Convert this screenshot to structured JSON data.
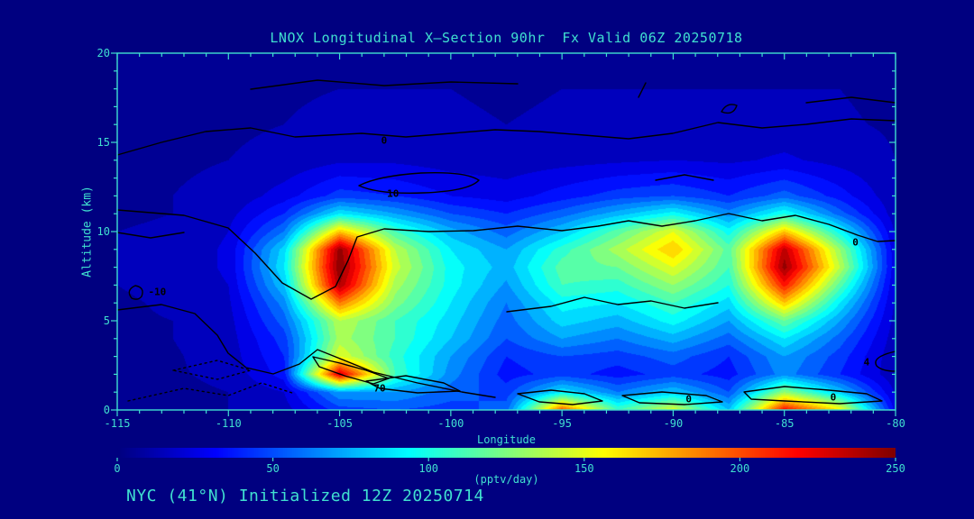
{
  "title": "LNOX Longitudinal X—Section 90hr  Fx Valid 06Z 20250718",
  "footer": "NYC (41°N) Initialized 12Z 20250714",
  "colors": {
    "background": "#000080",
    "accent": "#40E0D0",
    "contour": "#000000"
  },
  "axes": {
    "x": {
      "label": "Longitude",
      "min": -115,
      "max": -80,
      "ticks": [
        -115,
        -110,
        -105,
        -100,
        -95,
        -90,
        -85,
        -80
      ],
      "minor_step": 1
    },
    "y": {
      "label": "Altitude (km)",
      "min": 0,
      "max": 20,
      "ticks": [
        0,
        5,
        10,
        15,
        20
      ],
      "minor_step": 1
    }
  },
  "colorbar": {
    "label": "(pptv/day)",
    "min": 0,
    "max": 250,
    "ticks": [
      0,
      50,
      100,
      150,
      200,
      250
    ]
  },
  "contour_labels": [
    {
      "text": "0",
      "lon": -103.0,
      "km": 15.1
    },
    {
      "text": "10",
      "lon": -102.6,
      "km": 12.1
    },
    {
      "text": "-10",
      "lon": -113.2,
      "km": 6.6
    },
    {
      "text": "70",
      "lon": -103.2,
      "km": 1.2
    },
    {
      "text": "0",
      "lon": -89.3,
      "km": 0.6
    },
    {
      "text": "0",
      "lon": -82.8,
      "km": 0.7
    },
    {
      "text": "0",
      "lon": -81.8,
      "km": 9.4
    },
    {
      "text": "4",
      "lon": -81.3,
      "km": 2.7
    }
  ],
  "chart_data": {
    "type": "heatmap",
    "title": "LNOX Longitudinal X—Section 90hr  Fx Valid 06Z 20250718",
    "units": "pptv/day",
    "colormap": "jet",
    "value_range": [
      0,
      250
    ],
    "band_step": 10,
    "xlabel": "Longitude",
    "ylabel": "Altitude (km)",
    "x_longitude": [
      -115,
      -112.5,
      -110,
      -107.5,
      -105,
      -102.5,
      -100,
      -97.5,
      -95,
      -92.5,
      -90,
      -87.5,
      -85,
      -82.5,
      -80
    ],
    "y_altitude_km": [
      0,
      1,
      2,
      3,
      4,
      5,
      6,
      7,
      8,
      9,
      10,
      11,
      12,
      14,
      16,
      18,
      20
    ],
    "values": [
      [
        8,
        8,
        10,
        15,
        45,
        50,
        45,
        55,
        200,
        110,
        150,
        80,
        220,
        160,
        25
      ],
      [
        8,
        8,
        10,
        20,
        70,
        70,
        55,
        45,
        90,
        60,
        80,
        50,
        130,
        80,
        18
      ],
      [
        8,
        9,
        12,
        35,
        230,
        110,
        65,
        35,
        45,
        35,
        45,
        35,
        65,
        40,
        12
      ],
      [
        8,
        9,
        14,
        40,
        150,
        105,
        70,
        40,
        50,
        45,
        55,
        40,
        70,
        45,
        12
      ],
      [
        8,
        10,
        15,
        45,
        135,
        110,
        80,
        50,
        70,
        60,
        75,
        55,
        90,
        55,
        14
      ],
      [
        9,
        10,
        16,
        55,
        140,
        110,
        85,
        55,
        85,
        75,
        95,
        70,
        120,
        70,
        16
      ],
      [
        9,
        11,
        18,
        65,
        190,
        125,
        90,
        60,
        95,
        90,
        110,
        85,
        170,
        90,
        18
      ],
      [
        10,
        12,
        20,
        80,
        240,
        135,
        95,
        68,
        110,
        105,
        130,
        100,
        215,
        115,
        20
      ],
      [
        10,
        12,
        22,
        90,
        250,
        145,
        95,
        75,
        115,
        120,
        150,
        110,
        245,
        140,
        22
      ],
      [
        10,
        12,
        22,
        85,
        245,
        140,
        90,
        70,
        105,
        135,
        170,
        115,
        235,
        130,
        22
      ],
      [
        10,
        11,
        20,
        60,
        170,
        110,
        75,
        55,
        80,
        115,
        150,
        95,
        170,
        95,
        18
      ],
      [
        9,
        10,
        16,
        40,
        90,
        70,
        50,
        40,
        55,
        75,
        95,
        65,
        100,
        55,
        14
      ],
      [
        9,
        10,
        12,
        25,
        45,
        40,
        30,
        25,
        35,
        45,
        50,
        40,
        55,
        35,
        12
      ],
      [
        8,
        9,
        10,
        12,
        18,
        18,
        15,
        14,
        16,
        18,
        20,
        18,
        22,
        16,
        10
      ],
      [
        8,
        8,
        9,
        10,
        12,
        12,
        11,
        10,
        11,
        12,
        12,
        12,
        13,
        11,
        9
      ],
      [
        7,
        8,
        8,
        9,
        10,
        10,
        10,
        9,
        10,
        10,
        10,
        10,
        10,
        10,
        8
      ],
      [
        7,
        7,
        8,
        8,
        9,
        9,
        9,
        8,
        9,
        9,
        9,
        9,
        9,
        9,
        8
      ]
    ]
  }
}
